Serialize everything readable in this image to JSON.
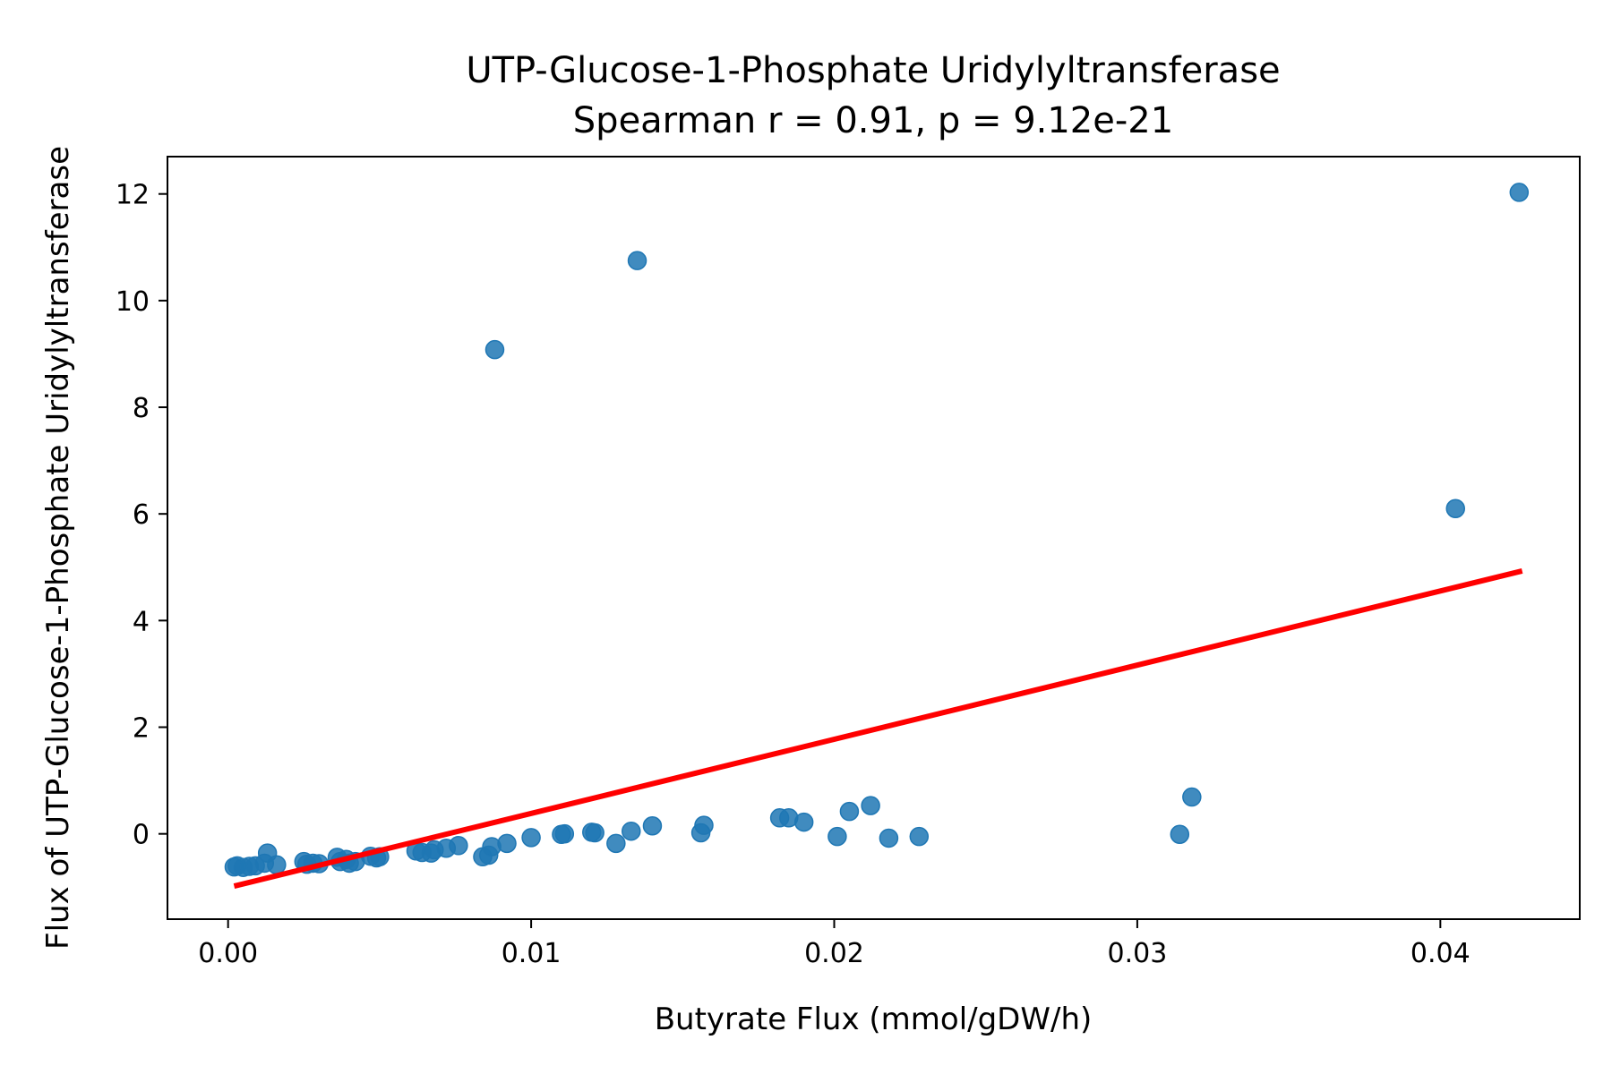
{
  "chart_data": {
    "type": "scatter",
    "title": "UTP-Glucose-1-Phosphate Uridylyltransferase",
    "subtitle": "Spearman r = 0.91, p = 9.12e-21",
    "xlabel": "Butyrate Flux (mmol/gDW/h)",
    "ylabel": "Flux of UTP-Glucose-1-Phosphate Uridylyltransferase",
    "xlim": [
      -0.002,
      0.0446
    ],
    "ylim": [
      -1.6,
      12.7
    ],
    "xticks": [
      0.0,
      0.01,
      0.02,
      0.03,
      0.04
    ],
    "xtick_labels": [
      "0.00",
      "0.01",
      "0.02",
      "0.03",
      "0.04"
    ],
    "yticks": [
      0,
      2,
      4,
      6,
      8,
      10,
      12
    ],
    "ytick_labels": [
      "0",
      "2",
      "4",
      "6",
      "8",
      "10",
      "12"
    ],
    "grid": false,
    "colors": {
      "points": "#1f77b4",
      "fit_line": "#ff0000"
    },
    "points": [
      {
        "x": 0.0002,
        "y": -0.62
      },
      {
        "x": 0.0003,
        "y": -0.6
      },
      {
        "x": 0.0005,
        "y": -0.63
      },
      {
        "x": 0.0007,
        "y": -0.61
      },
      {
        "x": 0.0009,
        "y": -0.6
      },
      {
        "x": 0.0012,
        "y": -0.55
      },
      {
        "x": 0.0013,
        "y": -0.36
      },
      {
        "x": 0.0016,
        "y": -0.58
      },
      {
        "x": 0.0025,
        "y": -0.52
      },
      {
        "x": 0.0026,
        "y": -0.57
      },
      {
        "x": 0.0028,
        "y": -0.55
      },
      {
        "x": 0.003,
        "y": -0.56
      },
      {
        "x": 0.0036,
        "y": -0.44
      },
      {
        "x": 0.0037,
        "y": -0.52
      },
      {
        "x": 0.0039,
        "y": -0.48
      },
      {
        "x": 0.004,
        "y": -0.55
      },
      {
        "x": 0.0042,
        "y": -0.52
      },
      {
        "x": 0.0047,
        "y": -0.42
      },
      {
        "x": 0.0049,
        "y": -0.45
      },
      {
        "x": 0.005,
        "y": -0.43
      },
      {
        "x": 0.0062,
        "y": -0.32
      },
      {
        "x": 0.0064,
        "y": -0.35
      },
      {
        "x": 0.0067,
        "y": -0.36
      },
      {
        "x": 0.0068,
        "y": -0.3
      },
      {
        "x": 0.0072,
        "y": -0.27
      },
      {
        "x": 0.0076,
        "y": -0.22
      },
      {
        "x": 0.0084,
        "y": -0.43
      },
      {
        "x": 0.0086,
        "y": -0.4
      },
      {
        "x": 0.0087,
        "y": -0.24
      },
      {
        "x": 0.0088,
        "y": 9.08
      },
      {
        "x": 0.0092,
        "y": -0.18
      },
      {
        "x": 0.01,
        "y": -0.07
      },
      {
        "x": 0.011,
        "y": -0.01
      },
      {
        "x": 0.0111,
        "y": 0.0
      },
      {
        "x": 0.012,
        "y": 0.03
      },
      {
        "x": 0.0121,
        "y": 0.02
      },
      {
        "x": 0.0128,
        "y": -0.18
      },
      {
        "x": 0.0133,
        "y": 0.05
      },
      {
        "x": 0.0135,
        "y": 10.75
      },
      {
        "x": 0.014,
        "y": 0.15
      },
      {
        "x": 0.0156,
        "y": 0.02
      },
      {
        "x": 0.0157,
        "y": 0.16
      },
      {
        "x": 0.0182,
        "y": 0.3
      },
      {
        "x": 0.0185,
        "y": 0.3
      },
      {
        "x": 0.019,
        "y": 0.22
      },
      {
        "x": 0.0201,
        "y": -0.05
      },
      {
        "x": 0.0205,
        "y": 0.42
      },
      {
        "x": 0.0212,
        "y": 0.53
      },
      {
        "x": 0.0218,
        "y": -0.08
      },
      {
        "x": 0.0228,
        "y": -0.05
      },
      {
        "x": 0.0314,
        "y": -0.01
      },
      {
        "x": 0.0318,
        "y": 0.69
      },
      {
        "x": 0.0405,
        "y": 6.1
      },
      {
        "x": 0.0426,
        "y": 12.03
      }
    ],
    "fit_line": {
      "x": [
        0.0002,
        0.0427
      ],
      "y": [
        -0.98,
        4.93
      ]
    }
  }
}
